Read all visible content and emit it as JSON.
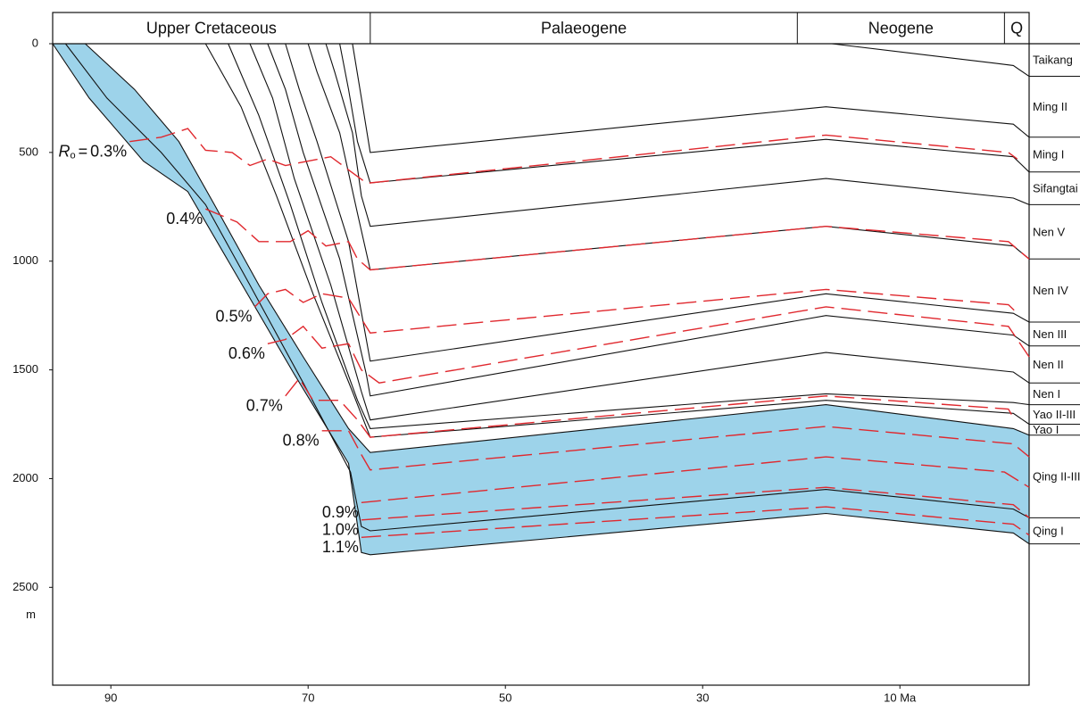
{
  "chart_data": {
    "type": "burial_history",
    "xlim": [
      95.9,
      -3.1
    ],
    "xticks": [
      90,
      70,
      50,
      30,
      {
        "value": 10,
        "label": "10 Ma"
      }
    ],
    "ylim": [
      0,
      2950
    ],
    "yticks": [
      0,
      500,
      1000,
      1500,
      2000,
      2500
    ],
    "y_unit": "m",
    "line_color": "#111111",
    "isoline_color": "#e0282e",
    "shade": {
      "color": "#9dd3ea",
      "from_formation": 10,
      "to_formation": 12
    },
    "periods": [
      {
        "name": "Upper Cretaceous",
        "start": 95.9,
        "end": 63.7
      },
      {
        "name": "Palaeogene",
        "start": 63.7,
        "end": 20.4
      },
      {
        "name": "Neogene",
        "start": 20.4,
        "end": -0.6
      },
      {
        "name": "Q",
        "start": -0.6,
        "end": -3.1
      }
    ],
    "formations": [
      {
        "name": "Taikang",
        "x": [
          16.9,
          0.3,
          -1.5,
          -3.1
        ],
        "depths": [
          0,
          90,
          100,
          150
        ]
      },
      {
        "name": "Ming II",
        "x": [
          65.5,
          64.6,
          63.7,
          17.5,
          -1.5,
          -3.1
        ],
        "depths": [
          0,
          250,
          500,
          290,
          370,
          430
        ]
      },
      {
        "name": "Ming I",
        "x": [
          66.8,
          65.9,
          65.0,
          63.7,
          17.5,
          -1.5,
          -3.1
        ],
        "depths": [
          0,
          210,
          450,
          640,
          440,
          520,
          590
        ]
      },
      {
        "name": "Sifangtai",
        "x": [
          68.2,
          67.3,
          65.5,
          64.6,
          63.7,
          17.5,
          -1.5,
          -3.1
        ],
        "depths": [
          0,
          130,
          410,
          700,
          840,
          620,
          710,
          740
        ]
      },
      {
        "name": "Nen V",
        "x": [
          70.0,
          69.1,
          66.8,
          65.0,
          63.7,
          17.5,
          -1.5,
          -3.1
        ],
        "depths": [
          0,
          130,
          410,
          780,
          1040,
          840,
          930,
          990
        ]
      },
      {
        "name": "Nen IV",
        "x": [
          72.3,
          70.9,
          69.1,
          65.9,
          64.1,
          63.7,
          17.5,
          -1.5,
          -3.1
        ],
        "depths": [
          0,
          210,
          450,
          910,
          1360,
          1460,
          1150,
          1240,
          1280
        ]
      },
      {
        "name": "Nen III",
        "x": [
          74.1,
          72.3,
          70.5,
          66.8,
          64.1,
          63.7,
          17.5,
          -1.5,
          -3.1
        ],
        "depths": [
          0,
          210,
          500,
          990,
          1520,
          1620,
          1250,
          1340,
          1390
        ]
      },
      {
        "name": "Nen II",
        "x": [
          75.9,
          73.6,
          71.4,
          67.7,
          64.6,
          63.7,
          17.5,
          -1.5,
          -3.1
        ],
        "depths": [
          0,
          250,
          620,
          1110,
          1600,
          1730,
          1420,
          1510,
          1560
        ]
      },
      {
        "name": "Nen I",
        "x": [
          78.1,
          75.0,
          71.8,
          68.6,
          65.0,
          63.7,
          17.5,
          -1.5,
          -3.1
        ],
        "depths": [
          0,
          330,
          740,
          1190,
          1640,
          1770,
          1610,
          1650,
          1660
        ]
      },
      {
        "name": "Yao II-III",
        "x": [
          80.4,
          76.8,
          73.2,
          69.5,
          65.5,
          63.7,
          17.5,
          -1.5,
          -3.1
        ],
        "depths": [
          0,
          290,
          700,
          1150,
          1600,
          1810,
          1640,
          1700,
          1750
        ]
      },
      {
        "name": "Yao I",
        "x": [
          92.6,
          87.6,
          83.1,
          79.5,
          75.0,
          70.5,
          65.9,
          63.7,
          17.5,
          -1.5,
          -3.1
        ],
        "depths": [
          0,
          210,
          450,
          740,
          1110,
          1440,
          1770,
          1880,
          1660,
          1770,
          1800
        ]
      },
      {
        "name": "Qing II-III",
        "x": [
          94.6,
          90.4,
          84.9,
          80.4,
          75.9,
          70.5,
          65.7,
          64.6,
          63.7,
          17.5,
          -1.5,
          -3.1
        ],
        "depths": [
          0,
          250,
          500,
          740,
          1110,
          1560,
          1970,
          2220,
          2240,
          2050,
          2140,
          2180
        ]
      },
      {
        "name": "Qing I",
        "x": [
          95.9,
          92.2,
          86.7,
          82.2,
          77.7,
          71.4,
          65.9,
          64.6,
          63.7,
          17.5,
          -1.5,
          -3.1
        ],
        "depths": [
          0,
          250,
          540,
          680,
          1030,
          1520,
          1930,
          2340,
          2350,
          2160,
          2250,
          2300
        ]
      }
    ],
    "ro_symbol": "R",
    "ro_subscript": "o",
    "ro_equals": "=",
    "isolines": [
      {
        "label": "0.3%",
        "x": [
          88.1,
          84.9,
          82.2,
          80.4,
          77.7,
          75.9,
          74.1,
          72.3,
          70.0,
          67.7,
          65.9,
          64.1,
          63.7,
          17.5,
          -1.0,
          -1.9
        ],
        "depths": [
          450,
          430,
          390,
          490,
          500,
          560,
          530,
          560,
          540,
          520,
          580,
          640,
          640,
          420,
          500,
          530
        ]
      },
      {
        "label": "0.4%",
        "x": [
          80.4,
          77.2,
          75.0,
          71.8,
          70.0,
          68.2,
          65.9,
          65.0,
          63.7,
          17.5,
          -1.0,
          -3.1
        ],
        "depths": [
          760,
          820,
          910,
          910,
          860,
          930,
          910,
          990,
          1040,
          840,
          910,
          990
        ]
      },
      {
        "label": "0.5%",
        "x": [
          75.4,
          74.1,
          72.3,
          70.5,
          68.6,
          65.9,
          63.7,
          17.5,
          -1.0,
          -1.9
        ],
        "depths": [
          1210,
          1150,
          1130,
          1190,
          1150,
          1170,
          1330,
          1130,
          1200,
          1240
        ]
      },
      {
        "label": "0.6%",
        "x": [
          74.1,
          72.3,
          70.5,
          68.6,
          65.9,
          64.6,
          62.8,
          17.5,
          -1.0,
          -3.1
        ],
        "depths": [
          1380,
          1360,
          1300,
          1400,
          1380,
          1500,
          1560,
          1210,
          1300,
          1440
        ]
      },
      {
        "label": "0.7%",
        "x": [
          72.3,
          70.9,
          69.5,
          66.8,
          65.0,
          63.7,
          17.5,
          -1.0,
          -1.5
        ],
        "depths": [
          1620,
          1540,
          1640,
          1640,
          1730,
          1810,
          1620,
          1680,
          1720
        ]
      },
      {
        "label": "0.8%",
        "x": [
          68.6,
          65.9,
          64.6,
          63.7,
          17.5,
          -1.5,
          -3.1
        ],
        "depths": [
          1780,
          1780,
          1890,
          1960,
          1760,
          1840,
          1900
        ]
      },
      {
        "label": "0.9%",
        "x": [
          64.6,
          17.5,
          -0.6,
          -3.1
        ],
        "depths": [
          2110,
          1900,
          1970,
          2040
        ]
      },
      {
        "label": "1.0%",
        "x": [
          64.6,
          17.5,
          -1.5,
          -3.1
        ],
        "depths": [
          2190,
          2040,
          2120,
          2180
        ]
      },
      {
        "label": "1.1%",
        "x": [
          64.6,
          17.5,
          -1.5,
          -3.1
        ],
        "depths": [
          2270,
          2130,
          2210,
          2260
        ]
      }
    ]
  }
}
